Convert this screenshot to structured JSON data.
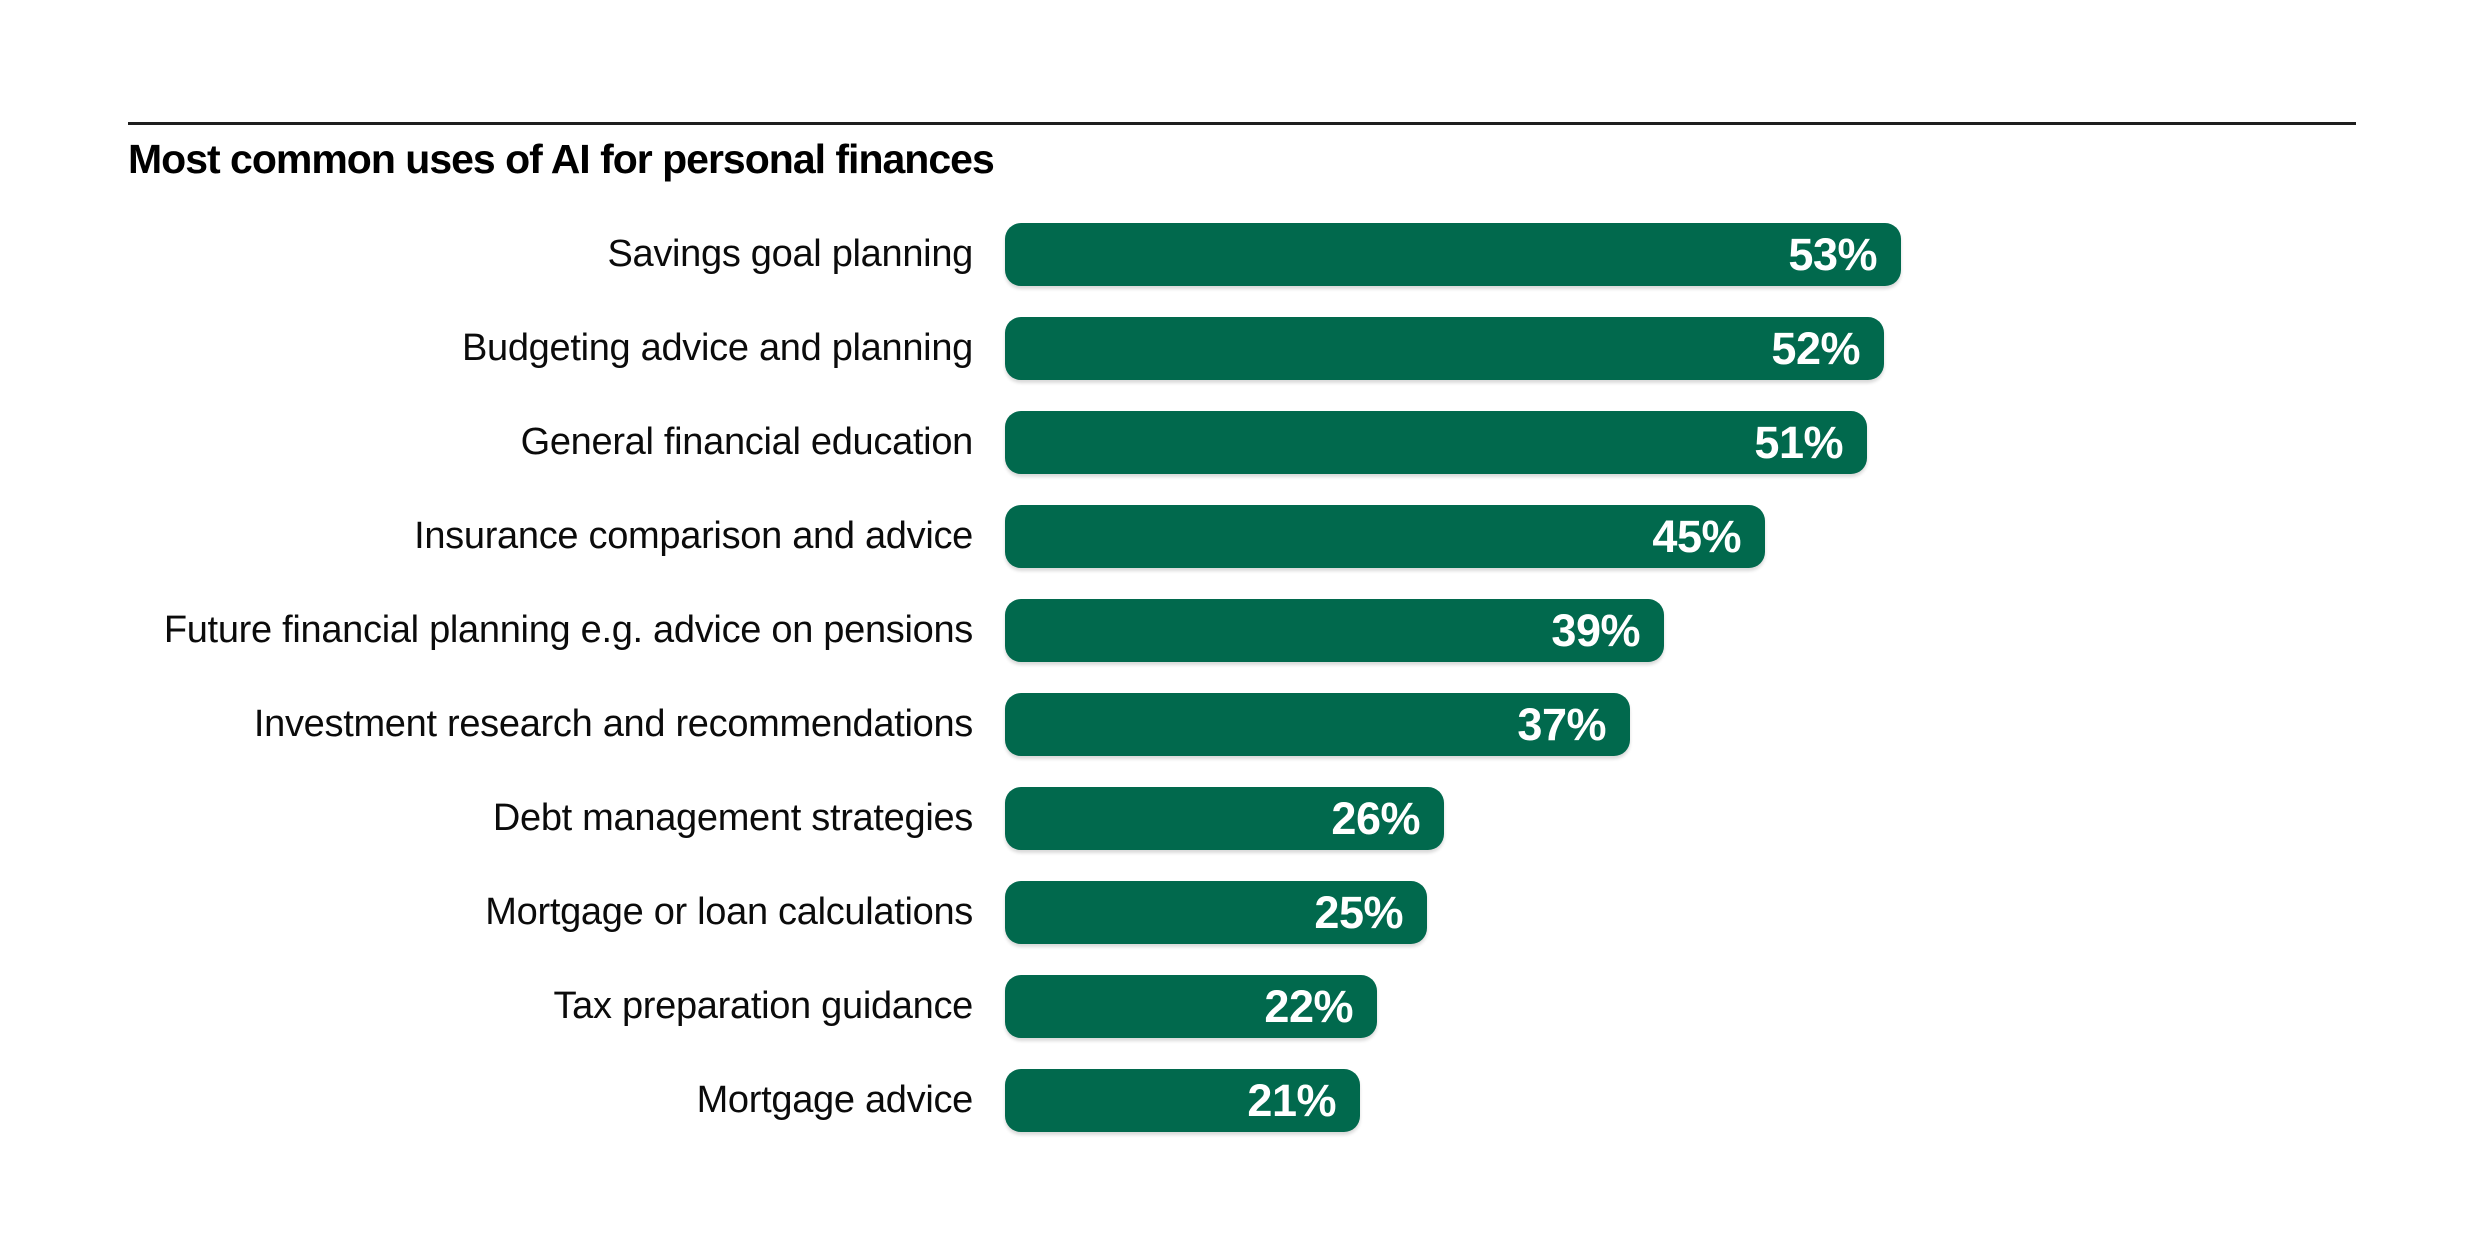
{
  "header": {
    "divider_color": "#1E1E1E"
  },
  "chart_data": {
    "type": "bar",
    "orientation": "horizontal",
    "title": "Most common uses of AI for personal finances",
    "categories": [
      "Savings goal planning",
      "Budgeting advice and planning",
      "General financial education",
      "Insurance comparison and advice",
      "Future financial planning e.g. advice on pensions",
      "Investment research and recommendations",
      "Debt management strategies",
      "Mortgage or loan calculations",
      "Tax preparation guidance",
      "Mortgage advice"
    ],
    "values": [
      53,
      52,
      51,
      45,
      39,
      37,
      26,
      25,
      22,
      21
    ],
    "value_suffix": "%",
    "xlim": [
      0,
      53
    ],
    "grid": false,
    "legend": false,
    "value_labels_position": "inside-end",
    "bar_color": "#01694D",
    "value_label_color": "#FFFFFF",
    "category_label_color": "#0B0B0B"
  }
}
